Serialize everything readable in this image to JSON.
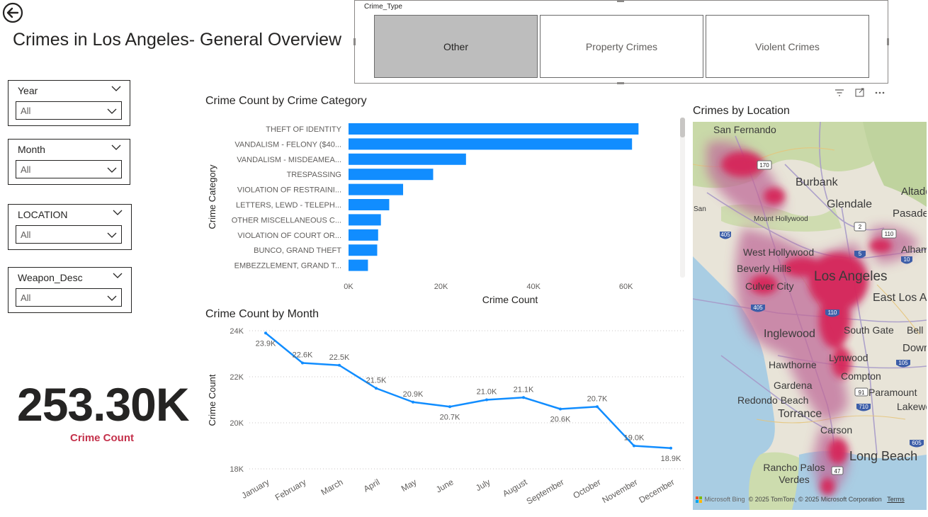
{
  "page": {
    "title": "Crimes in Los Angeles- General Overview"
  },
  "slicers": [
    {
      "label": "Year",
      "value": "All"
    },
    {
      "label": "Month",
      "value": "All"
    },
    {
      "label": "LOCATION",
      "value": "All"
    },
    {
      "label": "Weapon_Desc",
      "value": "All"
    }
  ],
  "crime_type": {
    "label": "Crime_Type",
    "options": [
      "Other",
      "Property Crimes",
      "Violent Crimes"
    ],
    "selected": "Other"
  },
  "kpi": {
    "value": "253.30K",
    "label": "Crime Count",
    "label_color": "#c4314b"
  },
  "toolbar": {
    "icons": [
      "filter-icon",
      "focus-mode-icon",
      "more-options-icon"
    ]
  },
  "map": {
    "title": "Crimes by Location",
    "places": [
      "San Fernando",
      "Burbank",
      "Glendale",
      "Altadena",
      "Pasadena",
      "Mount Hollywood",
      "West Hollywood",
      "Beverly Hills",
      "Culver City",
      "Los Angeles",
      "East Los Angeles",
      "Alhambra",
      "Inglewood",
      "South Gate",
      "Bell",
      "Downey",
      "Hawthorne",
      "Lynwood",
      "Compton",
      "Gardena",
      "Paramount",
      "Redondo Beach",
      "Torrance",
      "Lakewood",
      "Carson",
      "Long Beach",
      "Rancho Palos Verdes",
      "Santa Monica"
    ],
    "road_shields": [
      "170",
      "405",
      "2",
      "110",
      "5",
      "10",
      "105",
      "91",
      "710",
      "605",
      "47"
    ],
    "attribution": {
      "brand": "Microsoft Bing",
      "copyright": "© 2025 TomTom, © 2025 Microsoft Corporation",
      "terms": "Terms"
    }
  },
  "chart_data": [
    {
      "type": "bar",
      "orientation": "horizontal",
      "title": "Crime Count by Crime Category",
      "xlabel": "Crime Count",
      "ylabel": "Crime Category",
      "categories": [
        "THEFT OF IDENTITY",
        "VANDALISM - FELONY ($40...",
        "VANDALISM - MISDEAMEA...",
        "TRESPASSING",
        "VIOLATION OF RESTRAINI...",
        "LETTERS, LEWD - TELEPH...",
        "OTHER MISCELLANEOUS C...",
        "VIOLATION OF COURT OR...",
        "BUNCO, GRAND THEFT",
        "EMBEZZLEMENT, GRAND T..."
      ],
      "values": [
        62700,
        61300,
        25400,
        18300,
        11800,
        8800,
        7000,
        6400,
        6200,
        4200
      ],
      "xlim": [
        0,
        70000
      ],
      "xticks": [
        0,
        20000,
        40000,
        60000
      ],
      "xtick_labels": [
        "0K",
        "20K",
        "40K",
        "60K"
      ],
      "color": "#118dff"
    },
    {
      "type": "line",
      "title": "Crime Count by Month",
      "ylabel": "Crime Count",
      "x": [
        "January",
        "February",
        "March",
        "April",
        "May",
        "June",
        "July",
        "August",
        "September",
        "October",
        "November",
        "December"
      ],
      "values": [
        23.9,
        22.6,
        22.5,
        21.5,
        20.9,
        20.7,
        21.0,
        21.1,
        20.6,
        20.7,
        19.0,
        18.9
      ],
      "data_labels": [
        "23.9K",
        "22.6K",
        "22.5K",
        "21.5K",
        "20.9K",
        "20.7K",
        "21.0K",
        "21.1K",
        "20.6K",
        "20.7K",
        "19.0K",
        "18.9K"
      ],
      "ylim": [
        18,
        24
      ],
      "yticks": [
        18,
        20,
        22,
        24
      ],
      "ytick_labels": [
        "18K",
        "20K",
        "22K",
        "24K"
      ],
      "color": "#118dff"
    }
  ]
}
